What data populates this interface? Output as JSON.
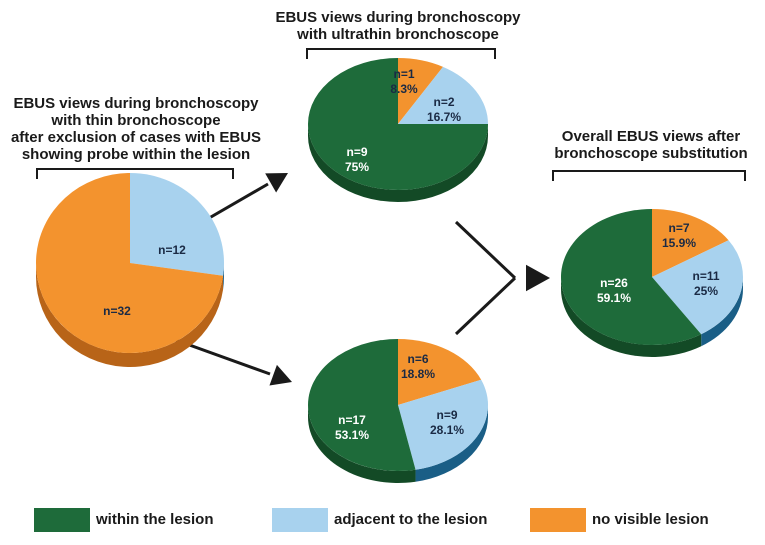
{
  "colors": {
    "within": "#1e6b3a",
    "within_dark": "#134a26",
    "adjacent": "#a8d2ee",
    "adjacent_dark": "#1a5e86",
    "novisible": "#f3932e",
    "novisible_dark": "#b86418",
    "text": "#1a1a1a",
    "label_white": "#ffffff",
    "label_dark": "#1a2a44"
  },
  "titles": {
    "thin": [
      "EBUS views during bronchoscopy",
      "with thin bronchoscope",
      "after exclusion of cases with EBUS",
      "showing probe within the lesion"
    ],
    "ultrathin": [
      "EBUS views during bronchoscopy",
      "with ultrathin bronchoscope"
    ],
    "overall": [
      "Overall EBUS views after",
      "bronchoscope substitution"
    ]
  },
  "legend": [
    {
      "label": "within the lesion",
      "color": "#1e6b3a"
    },
    {
      "label": "adjacent to the lesion",
      "color": "#a8d2ee"
    },
    {
      "label": "no visible lesion",
      "color": "#f3932e"
    }
  ],
  "chart_data": [
    {
      "type": "pie",
      "name": "thin",
      "slices": [
        {
          "category": "adjacent to the lesion",
          "value": 12,
          "label": "n=12"
        },
        {
          "category": "no visible lesion",
          "value": 32,
          "label": "n=32"
        }
      ]
    },
    {
      "type": "pie",
      "name": "ultrathin",
      "slices": [
        {
          "category": "no visible lesion",
          "value": 1,
          "label": "n=1",
          "pct": "8.3%"
        },
        {
          "category": "adjacent to the lesion",
          "value": 2,
          "label": "n=2",
          "pct": "16.7%"
        },
        {
          "category": "within the lesion",
          "value": 9,
          "label": "n=9",
          "pct": "75%"
        }
      ]
    },
    {
      "type": "pie",
      "name": "second",
      "slices": [
        {
          "category": "no visible lesion",
          "value": 6,
          "label": "n=6",
          "pct": "18.8%"
        },
        {
          "category": "adjacent to the lesion",
          "value": 9,
          "label": "n=9",
          "pct": "28.1%"
        },
        {
          "category": "within the lesion",
          "value": 17,
          "label": "n=17",
          "pct": "53.1%"
        }
      ]
    },
    {
      "type": "pie",
      "name": "overall",
      "slices": [
        {
          "category": "no visible lesion",
          "value": 7,
          "label": "n=7",
          "pct": "15.9%"
        },
        {
          "category": "adjacent to the lesion",
          "value": 11,
          "label": "n=11",
          "pct": "25%"
        },
        {
          "category": "within the lesion",
          "value": 26,
          "label": "n=26",
          "pct": "59.1%"
        }
      ]
    }
  ]
}
